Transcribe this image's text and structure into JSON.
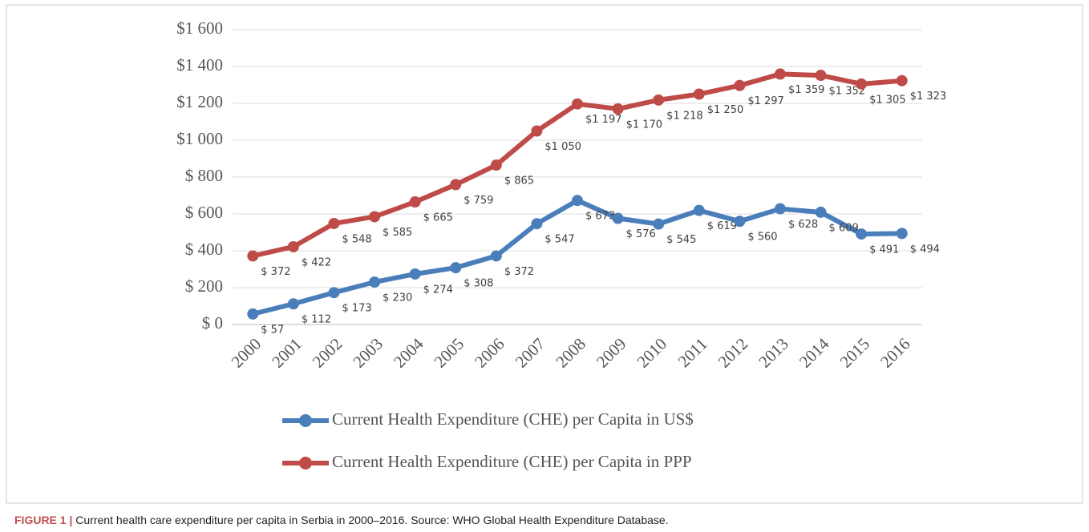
{
  "chart_data": {
    "type": "line",
    "caption_label": "FIGURE 1 |",
    "caption": "Current health care expenditure per capita in Serbia in 2000–2016. Source: WHO Global Health Expenditure Database.",
    "categories": [
      "2000",
      "2001",
      "2002",
      "2003",
      "2004",
      "2005",
      "2006",
      "2007",
      "2008",
      "2009",
      "2010",
      "2011",
      "2012",
      "2013",
      "2014",
      "2015",
      "2016"
    ],
    "series": [
      {
        "name": "Current Health Expenditure (CHE) per Capita in US$",
        "color": "#4a7ebb",
        "values": [
          57,
          112,
          173,
          230,
          274,
          308,
          372,
          547,
          673,
          576,
          545,
          619,
          560,
          628,
          609,
          491,
          494
        ],
        "value_labels": [
          "$ 57",
          "$ 112",
          "$ 173",
          "$ 230",
          "$ 274",
          "$ 308",
          "$ 372",
          "$ 547",
          "$ 673",
          "$ 576",
          "$ 545",
          "$ 619",
          "$ 560",
          "$ 628",
          "$ 609",
          "$ 491",
          "$ 494"
        ]
      },
      {
        "name": "Current Health Expenditure (CHE) per Capita in PPP",
        "color": "#be4b48",
        "values": [
          372,
          422,
          548,
          585,
          665,
          759,
          865,
          1050,
          1197,
          1170,
          1218,
          1250,
          1297,
          1359,
          1352,
          1305,
          1323
        ],
        "value_labels": [
          "$ 372",
          "$ 422",
          "$ 548",
          "$ 585",
          "$ 665",
          "$ 759",
          "$ 865",
          "$1 050",
          "$1 197",
          "$1 170",
          "$1 218",
          "$1 250",
          "$1 297",
          "$1 359",
          "$1 352",
          "$1 305",
          "$1 323"
        ]
      }
    ],
    "ylim": [
      0,
      1600
    ],
    "yticks": [
      {
        "value": 0,
        "label": "$ 0"
      },
      {
        "value": 200,
        "label": "$ 200"
      },
      {
        "value": 400,
        "label": "$ 400"
      },
      {
        "value": 600,
        "label": "$ 600"
      },
      {
        "value": 800,
        "label": "$ 800"
      },
      {
        "value": 1000,
        "label": "$1 000"
      },
      {
        "value": 1200,
        "label": "$1 200"
      },
      {
        "value": 1400,
        "label": "$1 400"
      },
      {
        "value": 1600,
        "label": "$1 600"
      }
    ],
    "grid": true
  }
}
